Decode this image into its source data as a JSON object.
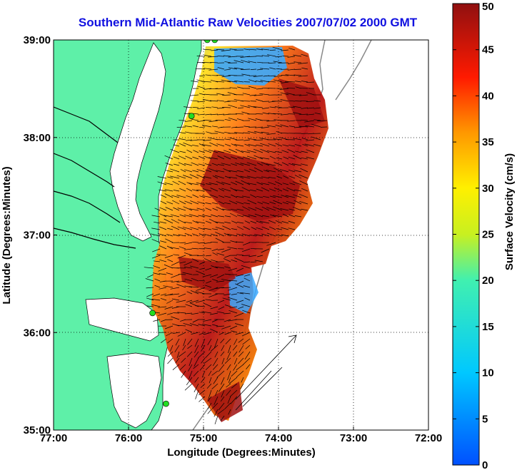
{
  "title": "Southern Mid-Atlantic Raw Velocities 2007/07/02 2000 GMT",
  "x_axis": {
    "label": "Longitude (Degrees:Minutes)",
    "ticks": [
      "77:00",
      "76:00",
      "75:00",
      "74:00",
      "73:00",
      "72:00"
    ]
  },
  "y_axis": {
    "label": "Latitude (Degrees:Minutes)",
    "ticks": [
      "39:00",
      "38:00",
      "37:00",
      "36:00",
      "35:00"
    ]
  },
  "colorbar": {
    "label": "Surface Velocity (cm/s)",
    "ticks": [
      "50",
      "45",
      "40",
      "35",
      "30",
      "25",
      "20",
      "15",
      "10",
      "5",
      "0"
    ],
    "min": 0,
    "max": 50
  },
  "colors": {
    "land": "#5ef0a8",
    "water": "#ffffff",
    "title": "#1010e0",
    "station": "#22dd22"
  },
  "map_extent": {
    "lon_min": -77,
    "lon_max": -72,
    "lat_min": 35,
    "lat_max": 39
  },
  "hf_radar_stations": [
    {
      "lon": -74.85,
      "lat": 39.0
    },
    {
      "lon": -74.95,
      "lat": 39.0
    },
    {
      "lon": -75.16,
      "lat": 38.22
    },
    {
      "lon": -75.68,
      "lat": 36.2
    },
    {
      "lon": -75.5,
      "lat": 35.27
    }
  ]
}
